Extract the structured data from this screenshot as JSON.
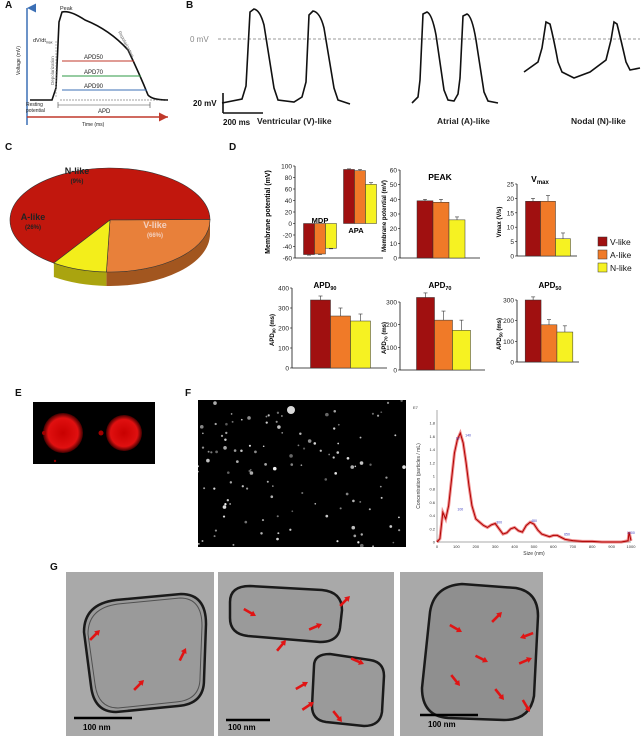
{
  "panel_labels": {
    "A": "A",
    "B": "B",
    "C": "C",
    "D": "D",
    "E": "E",
    "F": "F",
    "G": "G"
  },
  "panel_a": {
    "ylabel": "Voltage (mV)",
    "xlabel": "Time (ms)",
    "peak": "Peak",
    "dvdt": "dV/dt",
    "dvdt_sub": "max",
    "depolarization": "Depolarization",
    "repolarization": "Repolarization",
    "apd50": "APD50",
    "apd70": "APD70",
    "apd90": "APD90",
    "apd": "APD",
    "resting": "Resting",
    "potential": "potential"
  },
  "panel_b": {
    "zero_mv": "0 mV",
    "scale_v": "20 mV",
    "scale_t": "200 ms",
    "ventricular": "Ventricular (V)-like",
    "atrial": "Atrial (A)-like",
    "nodal": "Nodal (N)-like"
  },
  "chart_data": [
    {
      "type": "pie",
      "panel": "C",
      "categories": [
        "V-like",
        "A-like",
        "N-like"
      ],
      "values": [
        66,
        26,
        9
      ],
      "labels": [
        "V-like",
        "A-like",
        "N-like"
      ],
      "value_labels": [
        "(66%)",
        "(26%)",
        "(9%)"
      ],
      "colors": [
        "#c1170d",
        "#e8803a",
        "#f3ee1b"
      ]
    },
    {
      "type": "bar",
      "panel": "D",
      "title": "",
      "ylabel": "Membrane potential (mV)",
      "ylim": [
        -60,
        100
      ],
      "yticks": [
        -60,
        -40,
        -20,
        0,
        20,
        40,
        60,
        80,
        100
      ],
      "groups": [
        "MDP",
        "APA"
      ],
      "series": [
        {
          "name": "V-like",
          "values": [
            -54,
            94
          ],
          "errors": [
            1,
            1
          ]
        },
        {
          "name": "A-like",
          "values": [
            -53,
            92
          ],
          "errors": [
            1,
            2
          ]
        },
        {
          "name": "N-like",
          "values": [
            -43,
            68
          ],
          "errors": [
            1,
            3
          ]
        }
      ]
    },
    {
      "type": "bar",
      "panel": "D",
      "title": "PEAK",
      "ylabel": "Membrane potential (mV)",
      "ylim": [
        0,
        60
      ],
      "yticks": [
        0,
        10,
        20,
        30,
        40,
        50,
        60
      ],
      "series": [
        {
          "name": "V-like",
          "values": [
            39
          ],
          "errors": [
            1
          ]
        },
        {
          "name": "A-like",
          "values": [
            38
          ],
          "errors": [
            2
          ]
        },
        {
          "name": "N-like",
          "values": [
            26
          ],
          "errors": [
            2
          ]
        }
      ]
    },
    {
      "type": "bar",
      "panel": "D",
      "title": "Vmax",
      "title_sub": "max",
      "title_main": "V",
      "ylabel": "Vmax (V/s)",
      "ylim": [
        0,
        25
      ],
      "yticks": [
        0,
        5,
        10,
        15,
        20,
        25
      ],
      "series": [
        {
          "name": "V-like",
          "values": [
            19
          ],
          "errors": [
            1
          ]
        },
        {
          "name": "A-like",
          "values": [
            19
          ],
          "errors": [
            2
          ]
        },
        {
          "name": "N-like",
          "values": [
            6
          ],
          "errors": [
            2
          ]
        }
      ]
    },
    {
      "type": "bar",
      "panel": "D",
      "title": "APD90",
      "title_main": "APD",
      "title_sub": "90",
      "ylabel": "APD90 (ms)",
      "ylabel_main": "APD",
      "ylabel_sub": "90",
      "ylabel_unit": "(ms)",
      "ylim": [
        0,
        400
      ],
      "yticks": [
        0,
        100,
        200,
        300,
        400
      ],
      "series": [
        {
          "name": "V-like",
          "values": [
            340
          ],
          "errors": [
            20
          ]
        },
        {
          "name": "A-like",
          "values": [
            260
          ],
          "errors": [
            40
          ]
        },
        {
          "name": "N-like",
          "values": [
            235
          ],
          "errors": [
            35
          ]
        }
      ]
    },
    {
      "type": "bar",
      "panel": "D",
      "title": "APD70",
      "title_main": "APD",
      "title_sub": "70",
      "ylabel": "APD70 (ms)",
      "ylabel_main": "APD",
      "ylabel_sub": "70",
      "ylabel_unit": "(ms)",
      "ylim": [
        0,
        300
      ],
      "yticks": [
        0,
        100,
        200,
        300
      ],
      "series": [
        {
          "name": "V-like",
          "values": [
            320
          ],
          "errors": [
            20
          ]
        },
        {
          "name": "A-like",
          "values": [
            220
          ],
          "errors": [
            40
          ]
        },
        {
          "name": "N-like",
          "values": [
            175
          ],
          "errors": [
            45
          ]
        }
      ]
    },
    {
      "type": "bar",
      "panel": "D",
      "title": "APD50",
      "title_main": "APD",
      "title_sub": "50",
      "ylabel": "APD50 (ms)",
      "ylabel_main": "APD",
      "ylabel_sub": "50",
      "ylabel_unit": "(ms)",
      "ylim": [
        0,
        300
      ],
      "yticks": [
        0,
        100,
        200,
        300
      ],
      "series": [
        {
          "name": "V-like",
          "values": [
            300
          ],
          "errors": [
            15
          ]
        },
        {
          "name": "A-like",
          "values": [
            180
          ],
          "errors": [
            25
          ]
        },
        {
          "name": "N-like",
          "values": [
            145
          ],
          "errors": [
            30
          ]
        }
      ]
    },
    {
      "type": "line",
      "panel": "F",
      "xlabel": "Size (nm)",
      "ylabel": "Concentration (particles / mL)",
      "y_exponent": "E7",
      "xlim": [
        0,
        1000
      ],
      "ylim": [
        0,
        2.0
      ],
      "xticks": [
        0,
        100,
        200,
        300,
        400,
        500,
        600,
        700,
        800,
        900,
        1000
      ],
      "yticks": [
        0,
        0.2,
        0.4,
        0.6,
        0.8,
        1.0,
        1.2,
        1.4,
        1.6,
        1.8
      ],
      "ytick_labels": [
        "0",
        "0.2",
        "0.4",
        "0.6",
        "0.8",
        "1",
        "1.2",
        "1.4",
        "1.6",
        "1.8"
      ],
      "x": [
        0,
        15,
        30,
        45,
        60,
        75,
        90,
        105,
        120,
        135,
        150,
        165,
        180,
        200,
        220,
        240,
        260,
        280,
        300,
        320,
        340,
        360,
        380,
        400,
        420,
        440,
        460,
        480,
        500,
        520,
        540,
        560,
        580,
        600,
        620,
        640,
        660,
        680,
        700,
        750,
        800,
        850,
        900,
        950,
        985,
        990,
        1000
      ],
      "y": [
        0,
        0.05,
        0.45,
        0.35,
        0.55,
        0.95,
        1.35,
        1.55,
        1.65,
        1.5,
        1.2,
        0.85,
        0.55,
        0.35,
        0.3,
        0.25,
        0.22,
        0.26,
        0.28,
        0.2,
        0.12,
        0.14,
        0.2,
        0.22,
        0.17,
        0.15,
        0.25,
        0.3,
        0.27,
        0.18,
        0.12,
        0.1,
        0.08,
        0.1,
        0.1,
        0.07,
        0.04,
        0.03,
        0.02,
        0.01,
        0.01,
        0,
        0,
        0,
        0.02,
        0.15,
        0.02
      ],
      "peak_labels": [
        "92",
        "100",
        "140",
        "300",
        "480",
        "650",
        "1000"
      ]
    }
  ],
  "legend": {
    "items": [
      "V-like",
      "A-like",
      "N-like"
    ]
  },
  "panel_g": {
    "scale1": "100 nm",
    "scale2": "100 nm",
    "scale3": "100 nm"
  }
}
